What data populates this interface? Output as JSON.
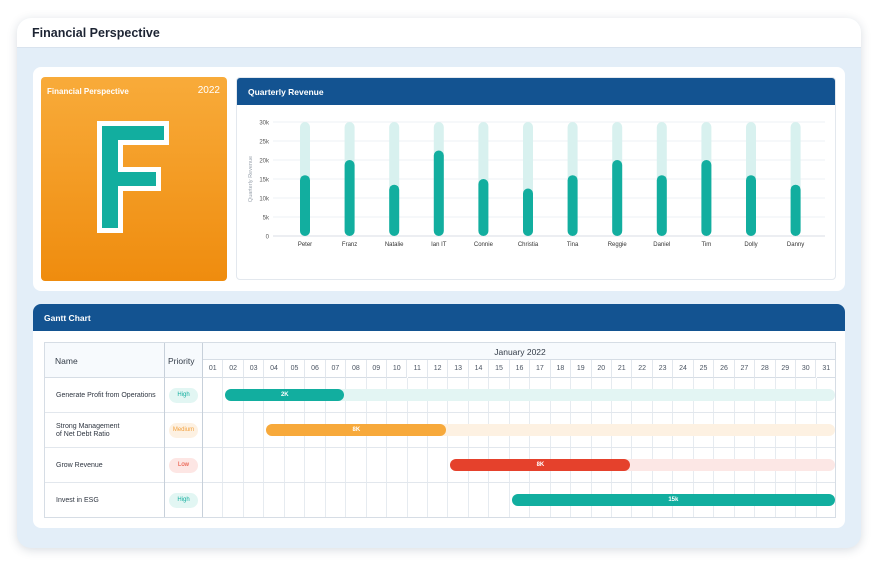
{
  "window": {
    "title": "Financial Perspective"
  },
  "financial_card": {
    "label": "Financial Perspective",
    "year": "2022",
    "letter": "F"
  },
  "revenue": {
    "header": "Quarterly Revenue",
    "chart_data": {
      "type": "bar",
      "ylabel": "Quarterly Revenue",
      "xlabel": "",
      "ylim": [
        0,
        30000
      ],
      "yticks": [
        "0",
        "5k",
        "10k",
        "15k",
        "20k",
        "25k",
        "30k"
      ],
      "categories": [
        "Peter",
        "Franz",
        "Natalie",
        "Ian IT",
        "Connie",
        "Christia",
        "Tina",
        "Reggie",
        "Daniel",
        "Tim",
        "Dolly",
        "Danny"
      ],
      "values": [
        16000,
        20000,
        13500,
        22500,
        15000,
        12500,
        16000,
        20000,
        16000,
        20000,
        16000,
        13500
      ],
      "background_track_value": 30000,
      "colors": {
        "bar": "#12ae9f",
        "track": "#d8f1ef"
      }
    }
  },
  "gantt": {
    "header": "Gantt Chart",
    "columns": {
      "name": "Name",
      "priority": "Priority"
    },
    "month": "January 2022",
    "days": [
      "01",
      "02",
      "03",
      "04",
      "05",
      "06",
      "07",
      "08",
      "09",
      "10",
      "11",
      "12",
      "13",
      "14",
      "15",
      "16",
      "17",
      "18",
      "19",
      "20",
      "21",
      "22",
      "23",
      "24",
      "25",
      "26",
      "27",
      "28",
      "29",
      "30",
      "31"
    ],
    "tasks": [
      {
        "name_lines": [
          "Generate Profit from Operations"
        ],
        "priority": "High",
        "start_day": 2,
        "end_day": 7,
        "track_end_day": 31,
        "label": "2K",
        "color": "#12ae9f",
        "track_color": "#e3f5f3",
        "badge_bg": "#e2f6f3",
        "badge_fg": "#12ae9f"
      },
      {
        "name_lines": [
          "Strong Management",
          "of Net Debt Ratio"
        ],
        "priority": "Medium",
        "start_day": 4,
        "end_day": 12,
        "track_end_day": 31,
        "label": "8K",
        "color": "#f7a93b",
        "track_color": "#fdf1e2",
        "badge_bg": "#fdf1e2",
        "badge_fg": "#f2a03d"
      },
      {
        "name_lines": [
          "Grow Revenue"
        ],
        "priority": "Low",
        "start_day": 13,
        "end_day": 21,
        "track_end_day": 31,
        "label": "8K",
        "color": "#e5412c",
        "track_color": "#fce7e5",
        "badge_bg": "#fde6e4",
        "badge_fg": "#e5412c"
      },
      {
        "name_lines": [
          "Invest in ESG"
        ],
        "priority": "High",
        "start_day": 16,
        "end_day": 31,
        "track_end_day": 31,
        "label": "15k",
        "color": "#12ae9f",
        "track_color": "#e3f5f3",
        "badge_bg": "#e2f6f3",
        "badge_fg": "#12ae9f"
      }
    ]
  }
}
